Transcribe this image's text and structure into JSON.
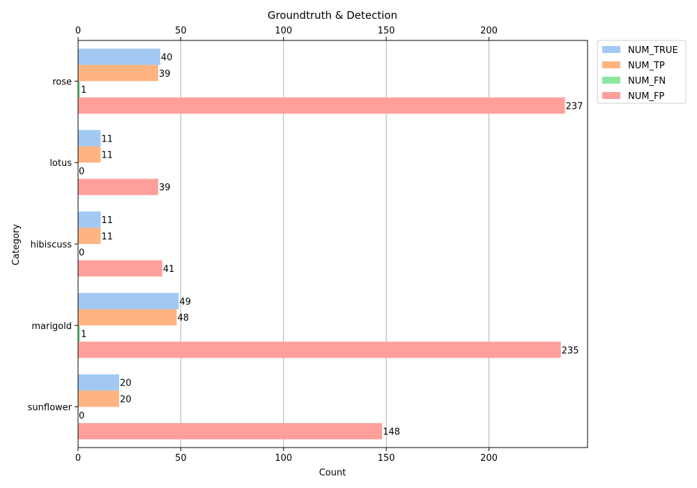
{
  "chart_data": {
    "type": "bar",
    "orientation": "horizontal",
    "title": "Groundtruth & Detection",
    "xlabel": "Count",
    "ylabel": "Category",
    "xlim": [
      0,
      248
    ],
    "x_ticks": [
      0,
      50,
      100,
      150,
      200
    ],
    "grid": "x",
    "legend_position": "outside-top-right",
    "categories": [
      "rose",
      "lotus",
      "hibiscuss",
      "marigold",
      "sunflower"
    ],
    "series": [
      {
        "name": "NUM_TRUE",
        "color": "#a1c9f4",
        "values": [
          40,
          11,
          11,
          49,
          20
        ]
      },
      {
        "name": "NUM_TP",
        "color": "#ffb482",
        "values": [
          39,
          11,
          11,
          48,
          20
        ]
      },
      {
        "name": "NUM_FN",
        "color": "#8de5a1",
        "values": [
          1,
          0,
          0,
          1,
          0
        ]
      },
      {
        "name": "NUM_FP",
        "color": "#ff9f9b",
        "values": [
          237,
          39,
          41,
          235,
          148
        ]
      }
    ]
  }
}
